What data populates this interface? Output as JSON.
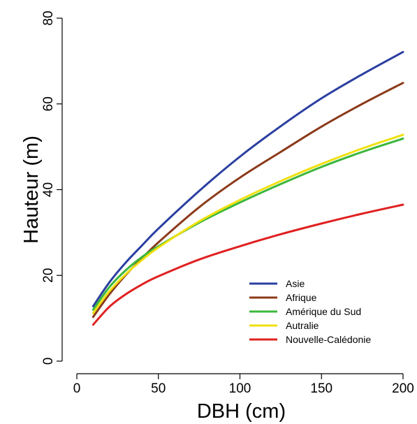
{
  "chart_data": {
    "type": "line",
    "xlabel": "DBH (cm)",
    "ylabel": "Hauteur (m)",
    "xlim": [
      0,
      200
    ],
    "ylim": [
      0,
      80
    ],
    "x_ticks": [
      0,
      50,
      100,
      150,
      200
    ],
    "y_ticks": [
      0,
      20,
      40,
      60,
      80
    ],
    "grid": false,
    "legend_position": "bottom-right",
    "x": [
      10,
      20,
      30,
      40,
      50,
      75,
      100,
      125,
      150,
      175,
      200
    ],
    "series": [
      {
        "name": "Asie",
        "color": "#2b3fa0",
        "values": [
          12.8,
          18.4,
          23.0,
          27.0,
          30.9,
          39.7,
          47.7,
          54.8,
          61.3,
          66.9,
          72.1
        ]
      },
      {
        "name": "Afrique",
        "color": "#8b3a1a",
        "values": [
          10.3,
          15.6,
          20.1,
          24.0,
          27.7,
          35.9,
          42.8,
          48.8,
          54.7,
          60.0,
          64.9
        ]
      },
      {
        "name": "Amérique du Sud",
        "color": "#3cb73c",
        "values": [
          12.0,
          17.3,
          21.2,
          24.3,
          26.8,
          32.3,
          37.0,
          41.3,
          45.3,
          48.8,
          51.9
        ]
      },
      {
        "name": "Autralie",
        "color": "#f0e010",
        "values": [
          11.2,
          16.3,
          20.3,
          23.6,
          26.5,
          32.6,
          37.6,
          42.0,
          46.0,
          49.6,
          52.8
        ]
      },
      {
        "name": "Nouvelle-Calédonie",
        "color": "#e02020",
        "values": [
          8.5,
          12.7,
          15.6,
          17.9,
          19.8,
          23.7,
          26.8,
          29.6,
          32.1,
          34.4,
          36.5
        ]
      }
    ]
  }
}
